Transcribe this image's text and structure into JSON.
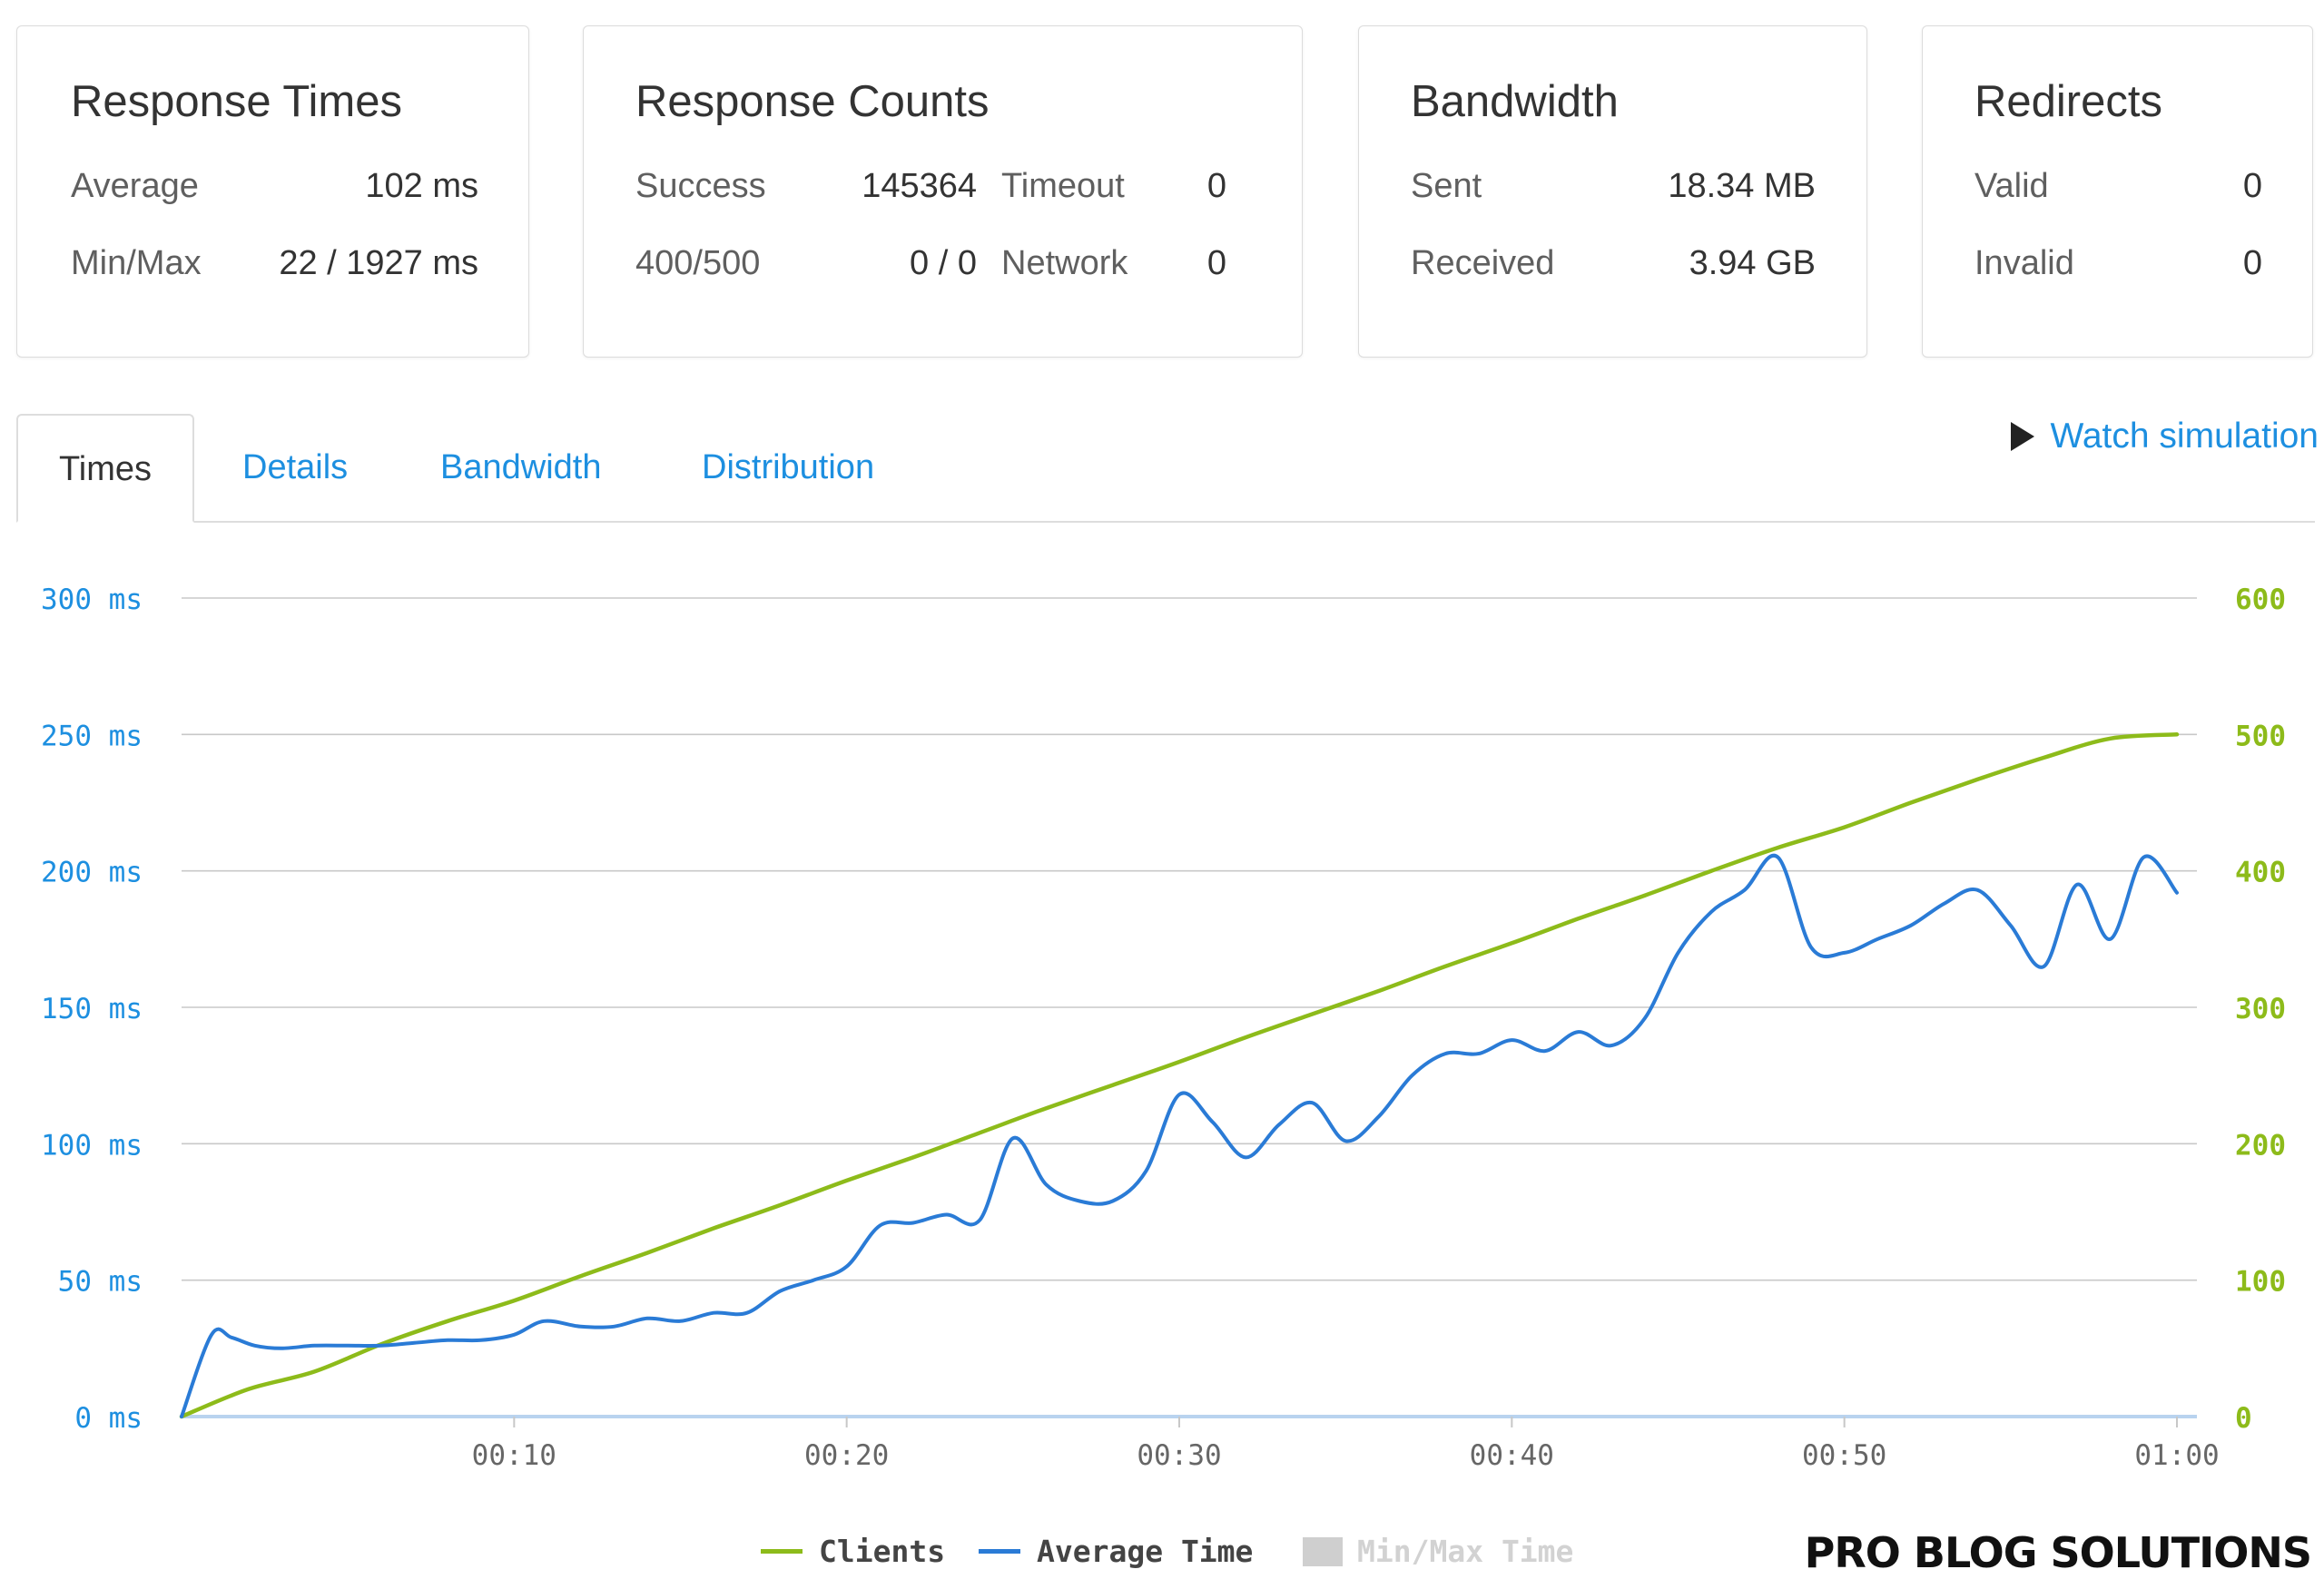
{
  "cards": {
    "response_times": {
      "title": "Response Times",
      "average_label": "Average",
      "average_value": "102 ms",
      "minmax_label": "Min/Max",
      "minmax_value": "22 / 1927 ms"
    },
    "response_counts": {
      "title": "Response Counts",
      "success_label": "Success",
      "success_value": "145364",
      "timeout_label": "Timeout",
      "timeout_value": "0",
      "errors_label": "400/500",
      "errors_value": "0 / 0",
      "network_label": "Network",
      "network_value": "0"
    },
    "bandwidth": {
      "title": "Bandwidth",
      "sent_label": "Sent",
      "sent_value": "18.34 MB",
      "received_label": "Received",
      "received_value": "3.94 GB"
    },
    "redirects": {
      "title": "Redirects",
      "valid_label": "Valid",
      "valid_value": "0",
      "invalid_label": "Invalid",
      "invalid_value": "0"
    }
  },
  "tabs": {
    "items": [
      {
        "label": "Times",
        "active": true
      },
      {
        "label": "Details",
        "active": false
      },
      {
        "label": "Bandwidth",
        "active": false
      },
      {
        "label": "Distribution",
        "active": false
      }
    ],
    "watch_label": "Watch simulation"
  },
  "legend": {
    "clients": "Clients",
    "average_time": "Average Time",
    "minmax_time": "Min/Max Time"
  },
  "brand": "PRO BLOG SOLUTIONS",
  "colors": {
    "accent_blue": "#1d8fe0",
    "clients_green": "#8dbb1a",
    "avg_blue": "#2a7bd6",
    "minmax_gray": "#cfcfcf"
  },
  "chart_data": {
    "type": "line",
    "x_label": "",
    "x_ticks": [
      "00:10",
      "00:20",
      "00:30",
      "00:40",
      "00:50",
      "01:00"
    ],
    "x_tick_seconds": [
      10,
      20,
      30,
      40,
      50,
      60
    ],
    "x_range": [
      0,
      60
    ],
    "y_left": {
      "label": "",
      "range": [
        0,
        300
      ],
      "ticks": [
        "0 ms",
        "50 ms",
        "100 ms",
        "150 ms",
        "200 ms",
        "250 ms",
        "300 ms"
      ]
    },
    "y_right": {
      "label": "",
      "range": [
        0,
        600
      ],
      "ticks": [
        "0",
        "100",
        "200",
        "300",
        "400",
        "500",
        "600"
      ]
    },
    "grid": true,
    "legend_position": "bottom",
    "series": [
      {
        "name": "Clients",
        "axis": "right",
        "points": [
          [
            0,
            0
          ],
          [
            2,
            20
          ],
          [
            4,
            33
          ],
          [
            6,
            53
          ],
          [
            8,
            70
          ],
          [
            10,
            85
          ],
          [
            12,
            103
          ],
          [
            14,
            120
          ],
          [
            16,
            138
          ],
          [
            18,
            155
          ],
          [
            20,
            173
          ],
          [
            22,
            190
          ],
          [
            24,
            208
          ],
          [
            26,
            226
          ],
          [
            28,
            243
          ],
          [
            30,
            260
          ],
          [
            32,
            278
          ],
          [
            34,
            295
          ],
          [
            36,
            312
          ],
          [
            38,
            330
          ],
          [
            40,
            347
          ],
          [
            42,
            365
          ],
          [
            44,
            382
          ],
          [
            46,
            400
          ],
          [
            48,
            417
          ],
          [
            50,
            432
          ],
          [
            52,
            450
          ],
          [
            54,
            467
          ],
          [
            56,
            483
          ],
          [
            58,
            497
          ],
          [
            60,
            500
          ]
        ]
      },
      {
        "name": "Average Time",
        "axis": "left",
        "points": [
          [
            0,
            0
          ],
          [
            0.9,
            30
          ],
          [
            1.5,
            29
          ],
          [
            2.2,
            26
          ],
          [
            3,
            25
          ],
          [
            4,
            26
          ],
          [
            5,
            26
          ],
          [
            6,
            26
          ],
          [
            7,
            27
          ],
          [
            8,
            28
          ],
          [
            9,
            28
          ],
          [
            10,
            30
          ],
          [
            10.9,
            35
          ],
          [
            12,
            33
          ],
          [
            13,
            33
          ],
          [
            14,
            36
          ],
          [
            15,
            35
          ],
          [
            16,
            38
          ],
          [
            17,
            38
          ],
          [
            18,
            46
          ],
          [
            19,
            50
          ],
          [
            20,
            55
          ],
          [
            21,
            70
          ],
          [
            22,
            71
          ],
          [
            23,
            74
          ],
          [
            24,
            72
          ],
          [
            25,
            102
          ],
          [
            26,
            85
          ],
          [
            27,
            79
          ],
          [
            28,
            79
          ],
          [
            29,
            90
          ],
          [
            30,
            118
          ],
          [
            31,
            108
          ],
          [
            32,
            95
          ],
          [
            33,
            107
          ],
          [
            34,
            115
          ],
          [
            35,
            101
          ],
          [
            36,
            110
          ],
          [
            37,
            125
          ],
          [
            38,
            133
          ],
          [
            39,
            133
          ],
          [
            40,
            138
          ],
          [
            41,
            134
          ],
          [
            42,
            141
          ],
          [
            43,
            136
          ],
          [
            44,
            146
          ],
          [
            45,
            170
          ],
          [
            46,
            185
          ],
          [
            47,
            193
          ],
          [
            48,
            205
          ],
          [
            49,
            172
          ],
          [
            50,
            170
          ],
          [
            51,
            175
          ],
          [
            52,
            180
          ],
          [
            53,
            188
          ],
          [
            54,
            193
          ],
          [
            55,
            180
          ],
          [
            56,
            165
          ],
          [
            57,
            195
          ],
          [
            58,
            175
          ],
          [
            59,
            205
          ],
          [
            60,
            192
          ]
        ]
      },
      {
        "name": "Min/Max Time",
        "axis": "left",
        "points": []
      }
    ]
  }
}
